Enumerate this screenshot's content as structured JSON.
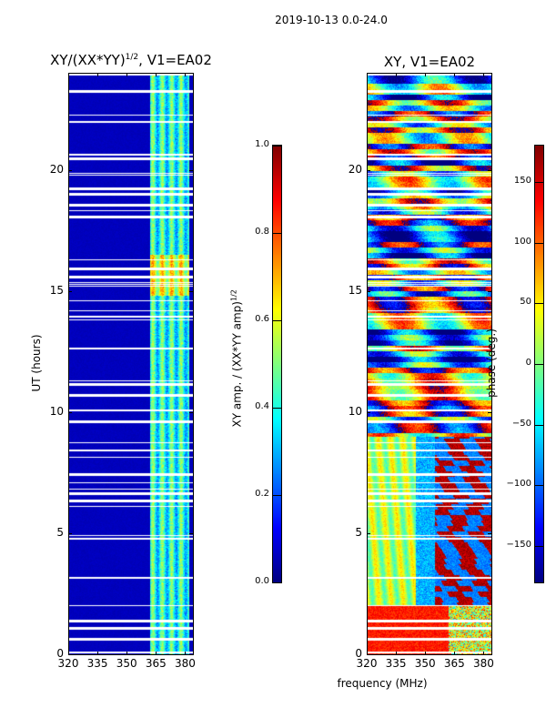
{
  "suptitle": "2019-10-13 0.0-24.0",
  "xlabel": "frequency (MHz)",
  "chart_data": [
    {
      "type": "heatmap",
      "title_main": "XY/(XX*YY)",
      "title_sup": "1/2",
      "title_suffix": ", V1=EA02",
      "ylabel": "UT (hours)",
      "xlabel": "frequency (MHz)",
      "xlim": [
        320,
        384
      ],
      "ylim": [
        0,
        24
      ],
      "xticks": [
        "320",
        "335",
        "350",
        "365",
        "380"
      ],
      "xtick_values": [
        320,
        335,
        350,
        365,
        380
      ],
      "yticks": [
        "0",
        "5",
        "10",
        "15",
        "20"
      ],
      "ytick_values": [
        0,
        5,
        10,
        15,
        20
      ],
      "colormap": "jet",
      "colorbar": {
        "label_main": "XY amp. / (XX*YY amp)",
        "label_sup": "1/2",
        "range": [
          0,
          1.0
        ],
        "ticks": [
          "0.0",
          "0.2",
          "0.4",
          "0.6",
          "0.8",
          "1.0"
        ],
        "tick_values": [
          0,
          0.2,
          0.4,
          0.6,
          0.8,
          1.0
        ]
      },
      "description_values": {
        "background_amplitude": 0.05,
        "signal_band_mhz": [
          362,
          382
        ],
        "signal_amplitude_range": [
          0.2,
          0.65
        ]
      }
    },
    {
      "type": "heatmap",
      "title_main": "XY, V1=EA02",
      "xlim": [
        320,
        384
      ],
      "ylim": [
        0,
        24
      ],
      "xticks": [
        "320",
        "335",
        "350",
        "365",
        "380"
      ],
      "xtick_values": [
        320,
        335,
        350,
        365,
        380
      ],
      "yticks": [
        "0",
        "5",
        "10",
        "15",
        "20"
      ],
      "ytick_values": [
        0,
        5,
        10,
        15,
        20
      ],
      "colormap": "jet",
      "colorbar": {
        "label_main": "phase (deg.)",
        "range": [
          -180,
          180
        ],
        "ticks": [
          "−150",
          "−100",
          "−50",
          "0",
          "50",
          "100",
          "150"
        ],
        "tick_values": [
          -150,
          -100,
          -50,
          0,
          50,
          100,
          150
        ]
      }
    }
  ]
}
